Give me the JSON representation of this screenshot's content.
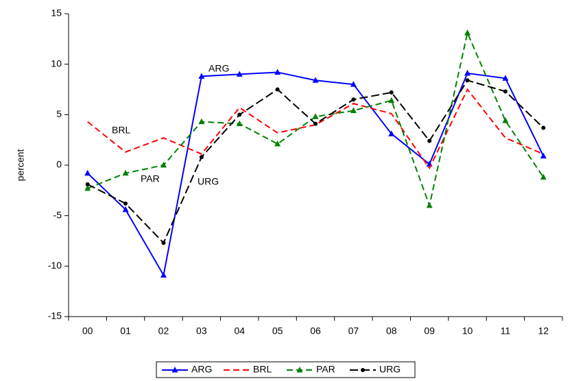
{
  "chart_data": {
    "type": "line",
    "y_label": "percent",
    "categories": [
      "00",
      "01",
      "02",
      "03",
      "04",
      "05",
      "06",
      "07",
      "08",
      "09",
      "10",
      "11",
      "12"
    ],
    "series": [
      {
        "name": "ARG",
        "color": "#0000ff",
        "dashed": false,
        "marker": "triangle",
        "values": [
          -0.8,
          -4.4,
          -10.9,
          8.8,
          9.0,
          9.2,
          8.4,
          8.0,
          3.1,
          0.1,
          9.1,
          8.6,
          0.9
        ]
      },
      {
        "name": "BRL",
        "color": "#ff0000",
        "dashed": true,
        "marker": "none",
        "values": [
          4.3,
          1.3,
          2.7,
          1.1,
          5.7,
          3.2,
          4.0,
          6.1,
          5.1,
          -0.3,
          7.5,
          2.7,
          1.1
        ]
      },
      {
        "name": "PAR",
        "color": "#008000",
        "dashed": true,
        "marker": "triangle",
        "values": [
          -2.3,
          -0.8,
          0.0,
          4.3,
          4.1,
          2.1,
          4.8,
          5.4,
          6.4,
          -4.0,
          13.1,
          4.4,
          -1.2
        ]
      },
      {
        "name": "URG",
        "color": "#000000",
        "dashed": true,
        "marker": "circle",
        "values": [
          -1.9,
          -3.8,
          -7.7,
          0.8,
          5.0,
          7.5,
          4.1,
          6.5,
          7.2,
          2.4,
          8.4,
          7.3,
          3.7
        ]
      }
    ],
    "annotations": [
      "ARG",
      "BRL",
      "PAR",
      "URG"
    ],
    "ylim": [
      -15,
      15
    ],
    "yticks": [
      -15,
      -10,
      -5,
      0,
      5,
      10,
      15
    ],
    "grid": false,
    "legend": "bottom"
  }
}
